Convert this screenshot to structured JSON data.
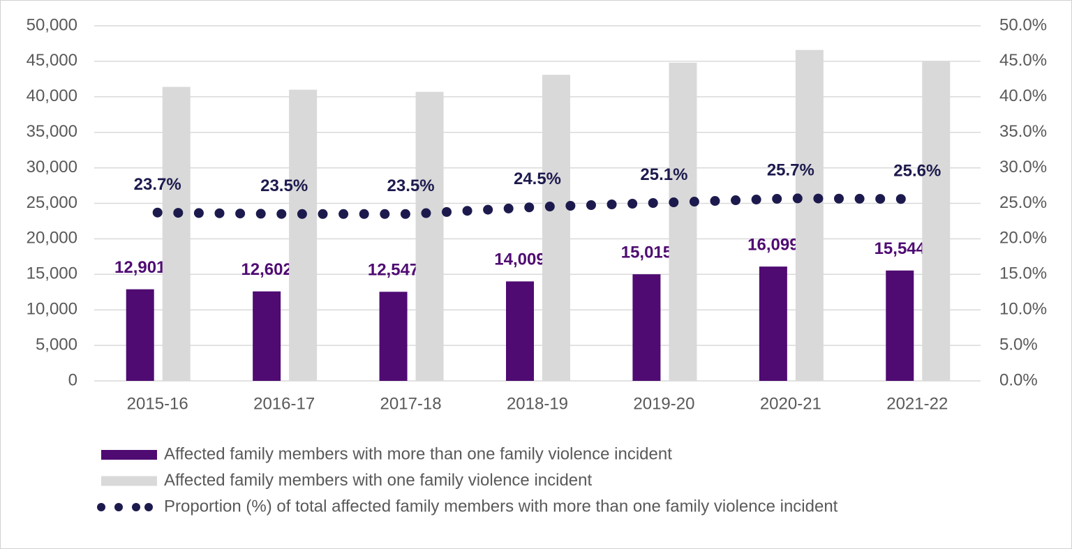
{
  "chart_data": {
    "type": "bar",
    "categories": [
      "2015-16",
      "2016-17",
      "2017-18",
      "2018-19",
      "2019-20",
      "2020-21",
      "2021-22"
    ],
    "series": [
      {
        "name": "Affected family members with more than one family violence incident",
        "type": "bar",
        "color": "#4f0b72",
        "values": [
          12901,
          12602,
          12547,
          14009,
          15015,
          16099,
          15544
        ],
        "value_labels": [
          "12,901",
          "12,602",
          "12,547",
          "14,009",
          "15,015",
          "16,099",
          "15,544"
        ]
      },
      {
        "name": "Affected family members with one family violence incident",
        "type": "bar",
        "color": "#d9d9d9",
        "values": [
          41400,
          41000,
          40700,
          43100,
          44800,
          46600,
          45000
        ]
      },
      {
        "name": "Proportion (%) of total affected family members with more than one family violence incident",
        "type": "line",
        "axis": "y2",
        "color": "#1c1a4d",
        "values": [
          23.7,
          23.5,
          23.5,
          24.5,
          25.1,
          25.7,
          25.6
        ],
        "value_labels": [
          "23.7%",
          "23.5%",
          "23.5%",
          "24.5%",
          "25.1%",
          "25.7%",
          "25.6%"
        ]
      }
    ],
    "ylim": [
      0,
      50000
    ],
    "yticks": [
      0,
      {
        "value": 5000,
        "label": "5,000"
      },
      {
        "value": 10000,
        "label": "10,000"
      },
      {
        "value": 15000,
        "label": "15,000"
      },
      {
        "value": 20000,
        "label": "20,000"
      },
      {
        "value": 25000,
        "label": "25,000"
      },
      {
        "value": 30000,
        "label": "30,000"
      },
      {
        "value": 35000,
        "label": "35,000"
      },
      {
        "value": 40000,
        "label": "40,000"
      },
      {
        "value": 45000,
        "label": "45,000"
      },
      {
        "value": 50000,
        "label": "50,000"
      }
    ],
    "y2lim": [
      0,
      50
    ],
    "y2ticks": [
      {
        "value": 0,
        "label": "0.0%"
      },
      {
        "value": 5,
        "label": "5.0%"
      },
      {
        "value": 10,
        "label": "10.0%"
      },
      {
        "value": 15,
        "label": "15.0%"
      },
      {
        "value": 20,
        "label": "20.0%"
      },
      {
        "value": 25,
        "label": "25.0%"
      },
      {
        "value": 30,
        "label": "30.0%"
      },
      {
        "value": 35,
        "label": "35.0%"
      },
      {
        "value": 40,
        "label": "40.0%"
      },
      {
        "value": 45,
        "label": "45.0%"
      },
      {
        "value": 50,
        "label": "50.0%"
      }
    ],
    "grid": true,
    "legend": "bottom"
  }
}
